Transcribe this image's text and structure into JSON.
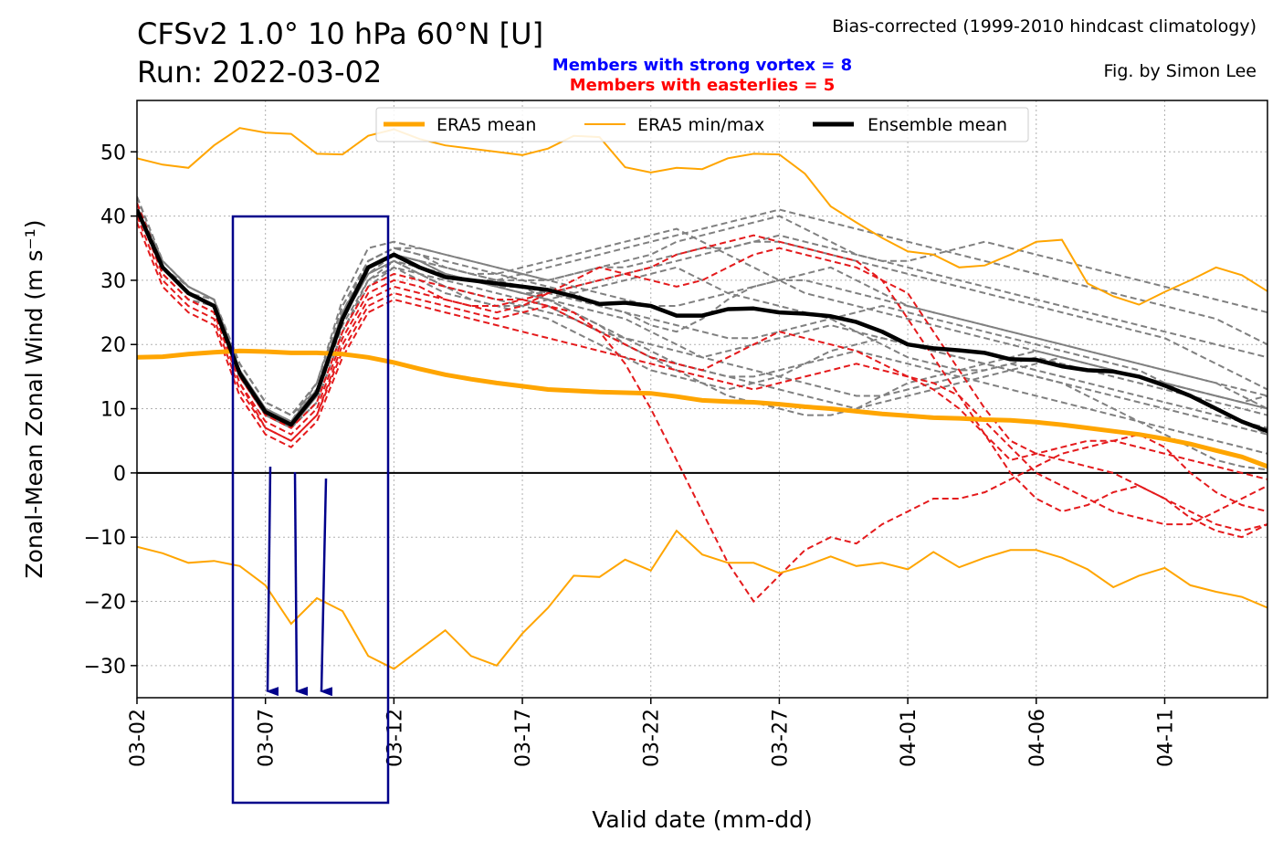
{
  "header": {
    "title_line1": "CFSv2 1.0° 10 hPa 60°N [U]",
    "title_line2": "Run: 2022-03-02",
    "note_right": "Bias-corrected (1999-2010 hindcast climatology)",
    "credit": "Fig. by Simon Lee",
    "strong_vortex_note": "Members with strong vortex = 8",
    "easterlies_note": "Members with easterlies = 5"
  },
  "colors": {
    "era5": "#ffa500",
    "member": "#808080",
    "easterly_member": "#e41a1c",
    "ensemble_mean": "#000000",
    "annotation_box": "#00008b",
    "annotation_arrow": "#00008b"
  },
  "chart_data": {
    "type": "line",
    "xlabel": "Valid date (mm-dd)",
    "ylabel": "Zonal-Mean Zonal Wind (m s⁻¹)",
    "x_tick_labels": [
      "03-02",
      "03-07",
      "03-12",
      "03-17",
      "03-22",
      "03-27",
      "04-01",
      "04-06",
      "04-11"
    ],
    "x_tick_day_offsets": [
      0,
      5,
      10,
      15,
      20,
      25,
      30,
      35,
      40
    ],
    "x_range_days": [
      0,
      44
    ],
    "ylim": [
      -35,
      58
    ],
    "yticks": [
      -30,
      -20,
      -10,
      0,
      10,
      20,
      30,
      40,
      50
    ],
    "grid": true,
    "legend": {
      "placement": "top-center",
      "entries": [
        "ERA5 mean",
        "ERA5 min/max",
        "Ensemble mean"
      ]
    },
    "era5_mean": [
      18,
      18.1,
      18.5,
      18.8,
      19,
      18.9,
      18.7,
      18.7,
      18.5,
      18,
      17.2,
      16.2,
      15.3,
      14.6,
      14,
      13.5,
      13,
      12.8,
      12.6,
      12.5,
      12.4,
      11.9,
      11.3,
      11.1,
      11,
      10.7,
      10.3,
      10,
      9.6,
      9.2,
      8.9,
      8.6,
      8.5,
      8.3,
      8.2,
      7.9,
      7.5,
      7,
      6.5,
      6,
      5.3,
      4.5,
      3.5,
      2.5,
      1,
      0.3
    ],
    "era5_max": [
      49,
      48,
      47.5,
      51,
      53.7,
      53,
      52.8,
      49.7,
      49.6,
      52.5,
      53.5,
      52,
      51,
      50.5,
      50,
      49.5,
      50.5,
      52.5,
      52.3,
      47.6,
      46.8,
      47.5,
      47.3,
      49,
      49.7,
      49.6,
      46.6,
      41.5,
      39,
      36.6,
      34.5,
      34,
      32,
      32.3,
      34,
      36,
      36.3,
      29.5,
      27.5,
      26.2,
      28.2,
      30,
      32,
      30.8,
      28.3
    ],
    "era5_min": [
      -11.5,
      -12.5,
      -14,
      -13.7,
      -14.5,
      -17.5,
      -23.5,
      -19.5,
      -21.5,
      -28.5,
      -30.5,
      -27.5,
      -24.5,
      -28.5,
      -30,
      -25,
      -21,
      -16,
      -16.2,
      -13.5,
      -15.2,
      -9,
      -12.7,
      -14,
      -14,
      -15.6,
      -14.5,
      -13,
      -14.5,
      -14,
      -15,
      -12.3,
      -14.7,
      -13.2,
      -12,
      -12,
      -13.2,
      -15,
      -17.8,
      -16,
      -14.8,
      -17.5,
      -18.5,
      -19.3,
      -21
    ],
    "ensemble_mean": [
      41,
      32,
      28,
      26,
      15.5,
      9.5,
      7.5,
      12.5,
      24,
      32,
      34,
      32,
      30.5,
      30,
      29.5,
      29,
      28.5,
      27.5,
      26.3,
      26.5,
      26,
      24.5,
      24.5,
      25.5,
      25.6,
      25,
      24.8,
      24.4,
      23.5,
      22,
      20,
      19.4,
      19.1,
      18.7,
      17.7,
      17.6,
      16.6,
      16,
      15.8,
      15,
      13.6,
      12,
      10,
      8,
      6.5,
      6
    ],
    "members": [
      [
        43,
        33,
        29,
        27,
        17,
        11,
        9,
        13,
        25,
        33,
        35,
        34,
        33,
        32,
        31,
        30,
        29,
        28,
        26,
        25,
        23,
        22,
        24,
        27,
        29,
        30,
        31,
        32,
        30,
        28,
        26,
        25,
        24,
        23,
        22,
        21,
        20,
        19,
        18,
        17,
        16,
        15,
        14,
        13,
        12,
        11
      ],
      [
        42,
        32,
        28,
        26,
        15,
        10,
        8,
        14,
        27,
        35,
        36,
        35,
        34,
        33,
        32,
        31,
        30,
        31,
        32,
        33,
        34,
        36,
        37,
        38,
        39,
        40,
        38,
        36,
        34,
        33,
        32,
        31,
        30,
        29,
        28,
        27,
        26,
        25,
        24,
        23,
        22,
        21,
        20,
        19,
        18,
        17
      ],
      [
        41,
        31,
        27,
        26,
        16,
        9,
        7,
        11,
        22,
        30,
        33,
        31,
        29,
        27,
        26,
        25,
        24,
        22,
        20,
        18,
        16,
        15,
        14,
        13,
        14,
        15,
        17,
        19,
        20,
        21,
        20,
        19,
        18,
        17,
        16,
        15,
        14,
        13,
        12,
        11,
        10,
        9,
        8,
        7,
        6,
        5
      ],
      [
        42,
        32,
        29,
        27,
        16,
        10,
        8,
        12,
        24,
        31,
        34,
        33,
        31,
        30,
        29,
        29,
        28,
        29,
        30,
        31,
        32,
        33,
        34,
        35,
        36,
        37,
        36,
        35,
        34,
        33,
        33,
        34,
        35,
        36,
        35,
        34,
        33,
        32,
        31,
        30,
        29,
        28,
        27,
        26,
        25,
        23
      ],
      [
        41,
        32,
        28,
        26,
        15,
        9,
        7,
        12,
        23,
        30,
        32,
        30,
        28,
        27,
        26,
        26,
        27,
        28,
        29,
        30,
        31,
        32,
        30,
        28,
        27,
        26,
        25,
        24,
        22,
        20,
        18,
        17,
        16,
        16,
        17,
        18,
        17,
        16,
        15,
        14,
        13,
        12,
        11,
        10,
        9,
        8
      ],
      [
        43,
        33,
        29,
        27,
        17,
        11,
        9,
        14,
        26,
        33,
        35,
        34,
        32,
        31,
        30,
        29,
        27,
        25,
        23,
        20,
        18,
        17,
        16,
        15,
        14,
        13,
        12,
        11,
        10,
        11,
        12,
        13,
        14,
        15,
        16,
        17,
        18,
        17,
        16,
        15,
        14,
        13,
        12,
        11,
        12,
        13
      ],
      [
        42,
        32,
        28,
        27,
        16,
        10,
        8,
        13,
        25,
        32,
        34,
        33,
        31,
        30,
        30,
        31,
        32,
        33,
        34,
        35,
        36,
        37,
        38,
        39,
        40,
        41,
        40,
        39,
        38,
        37,
        36,
        35,
        34,
        33,
        32,
        31,
        30,
        29,
        28,
        27,
        26,
        25,
        24,
        22,
        20,
        18
      ],
      [
        41,
        31,
        27,
        26,
        15,
        9,
        7,
        11,
        22,
        29,
        32,
        31,
        30,
        29,
        28,
        27,
        26,
        24,
        22,
        21,
        20,
        19,
        18,
        19,
        20,
        21,
        22,
        23,
        22,
        21,
        20,
        19,
        18,
        17,
        16,
        15,
        14,
        12,
        10,
        8,
        6,
        4,
        2,
        1,
        0.5,
        1
      ],
      [
        42,
        32,
        28,
        26,
        16,
        10,
        8,
        12,
        24,
        31,
        33,
        32,
        31,
        30,
        29,
        28,
        28,
        27,
        26,
        25,
        24,
        23,
        22,
        21,
        21,
        22,
        23,
        24,
        25,
        26,
        25,
        24,
        23,
        22,
        21,
        20,
        19,
        18,
        17,
        16,
        14,
        12,
        10,
        8,
        6,
        4
      ],
      [
        43,
        33,
        29,
        27,
        17,
        11,
        9,
        13,
        25,
        32,
        34,
        33,
        32,
        31,
        31,
        32,
        33,
        34,
        35,
        36,
        37,
        38,
        36,
        34,
        32,
        30,
        28,
        27,
        26,
        25,
        24,
        23,
        22,
        21,
        20,
        19,
        18,
        17,
        16,
        15,
        14,
        13,
        12,
        11,
        10,
        9
      ],
      [
        42,
        32,
        28,
        26,
        15,
        9,
        8,
        12,
        24,
        31,
        33,
        31,
        29,
        28,
        27,
        26,
        25,
        24,
        22,
        20,
        18,
        16,
        14,
        12,
        11,
        10,
        9,
        9,
        10,
        12,
        14,
        15,
        16,
        17,
        18,
        19,
        18,
        17,
        16,
        15,
        14,
        13,
        12,
        11,
        10,
        9
      ],
      [
        41,
        32,
        28,
        26,
        16,
        10,
        8,
        13,
        25,
        32,
        34,
        33,
        32,
        31,
        30,
        30,
        30,
        31,
        32,
        32,
        33,
        34,
        35,
        35,
        36,
        36,
        35,
        34,
        33,
        32,
        31,
        30,
        29,
        28,
        27,
        26,
        25,
        24,
        23,
        22,
        21,
        19,
        17,
        15,
        13,
        11
      ],
      [
        42,
        33,
        29,
        27,
        16,
        10,
        8,
        13,
        25,
        32,
        34,
        33,
        31,
        30,
        29,
        28,
        27,
        26,
        25,
        24,
        22,
        20,
        18,
        17,
        16,
        15,
        14,
        13,
        12,
        12,
        13,
        14,
        15,
        16,
        17,
        16,
        15,
        14,
        13,
        12,
        11,
        10,
        9,
        8,
        7,
        6
      ],
      [
        43,
        33,
        29,
        27,
        17,
        11,
        9,
        14,
        26,
        33,
        35,
        35,
        34,
        33,
        32,
        31,
        30,
        29,
        28,
        27,
        26,
        26,
        27,
        28,
        29,
        30,
        30,
        29,
        28,
        27,
        26,
        25,
        24,
        23,
        22,
        21,
        20,
        19,
        18,
        17,
        16,
        15,
        14,
        12,
        10,
        8
      ],
      [
        42,
        32,
        28,
        26,
        15,
        9,
        7,
        12,
        24,
        31,
        33,
        32,
        31,
        30,
        29,
        28,
        27,
        25,
        23,
        21,
        19,
        17,
        16,
        15,
        15,
        16,
        17,
        18,
        19,
        18,
        17,
        16,
        15,
        14,
        13,
        12,
        11,
        10,
        9,
        8,
        7,
        6,
        5,
        4,
        3,
        2
      ]
    ],
    "easterly_members": [
      [
        41,
        31,
        27,
        25,
        14,
        8,
        6,
        10,
        21,
        28,
        30,
        29,
        27,
        26,
        25,
        26,
        28,
        30,
        32,
        31,
        30,
        29,
        30,
        32,
        34,
        35,
        34,
        33,
        32,
        30,
        28,
        22,
        16,
        10,
        5,
        3,
        2,
        1,
        0,
        -2,
        -4,
        -6,
        -8,
        -9,
        -8,
        -7
      ],
      [
        42,
        32,
        28,
        26,
        15,
        9,
        7,
        11,
        22,
        29,
        31,
        30,
        29,
        28,
        27,
        27,
        28,
        29,
        30,
        31,
        32,
        34,
        35,
        36,
        37,
        36,
        35,
        34,
        33,
        30,
        24,
        18,
        12,
        6,
        0,
        -4,
        -6,
        -5,
        -3,
        -2,
        -4,
        -7,
        -9,
        -10,
        -8,
        -7
      ],
      [
        40,
        30,
        26,
        24,
        13,
        7,
        5,
        9,
        19,
        26,
        28,
        27,
        26,
        25,
        24,
        25,
        26,
        25,
        22,
        17,
        10,
        2,
        -6,
        -14,
        -20,
        -16,
        -12,
        -10,
        -11,
        -8,
        -6,
        -4,
        -4,
        -3,
        -1,
        1,
        3,
        4,
        5,
        6,
        4,
        0,
        -3,
        -5,
        -6,
        -7
      ],
      [
        41,
        31,
        27,
        25,
        14,
        7,
        5,
        9,
        20,
        27,
        29,
        28,
        27,
        26,
        26,
        27,
        26,
        24,
        22,
        20,
        18,
        17,
        16,
        18,
        20,
        22,
        21,
        20,
        19,
        17,
        15,
        14,
        12,
        8,
        4,
        0,
        -2,
        -4,
        -6,
        -7,
        -8,
        -8,
        -6,
        -4,
        -2,
        0
      ],
      [
        39,
        29,
        25,
        23,
        12,
        6,
        4,
        8,
        18,
        25,
        27,
        26,
        25,
        24,
        23,
        22,
        21,
        20,
        19,
        18,
        17,
        16,
        15,
        14,
        13,
        14,
        15,
        16,
        17,
        16,
        15,
        13,
        10,
        6,
        2,
        3,
        4,
        5,
        5,
        4,
        3,
        2,
        1,
        0,
        -1,
        -1
      ]
    ]
  }
}
